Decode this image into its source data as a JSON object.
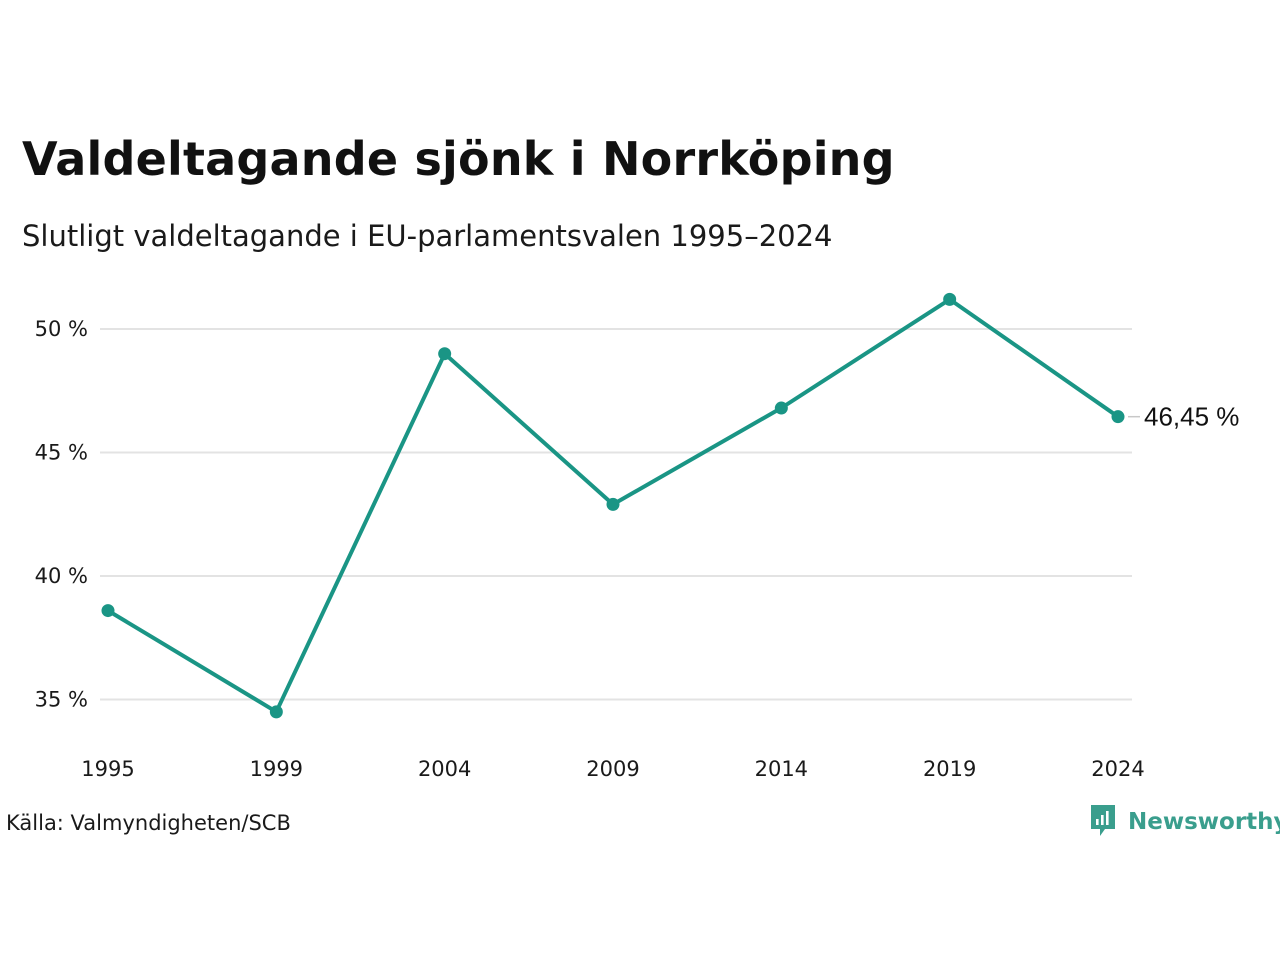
{
  "header": {
    "title": "Valdeltagande sjönk i Norrköping",
    "subtitle": "Slutligt valdeltagande i EU-parlamentsvalen 1995–2024"
  },
  "footer": {
    "source": "Källa: Valmyndigheten/SCB",
    "brand": "Newsworthy"
  },
  "colors": {
    "series": "#1a9585",
    "grid": "#e3e3e3",
    "brand": "#3a9e8d"
  },
  "icons": {
    "brand_logo": "newsworthy-logo-icon"
  },
  "chart_data": {
    "type": "line",
    "title": "Valdeltagande sjönk i Norrköping",
    "subtitle": "Slutligt valdeltagande i EU-parlamentsvalen 1995–2024",
    "categories": [
      "1995",
      "1999",
      "2004",
      "2009",
      "2014",
      "2019",
      "2024"
    ],
    "values": [
      38.6,
      34.5,
      49.0,
      42.9,
      46.8,
      51.2,
      46.45
    ],
    "ylim": [
      33.5,
      51.5
    ],
    "yticks": [
      35,
      40,
      45,
      50
    ],
    "ytick_labels": [
      "35 %",
      "40 %",
      "45 %",
      "50 %"
    ],
    "last_label": "46,45 %",
    "grid": true,
    "legend": "none"
  }
}
